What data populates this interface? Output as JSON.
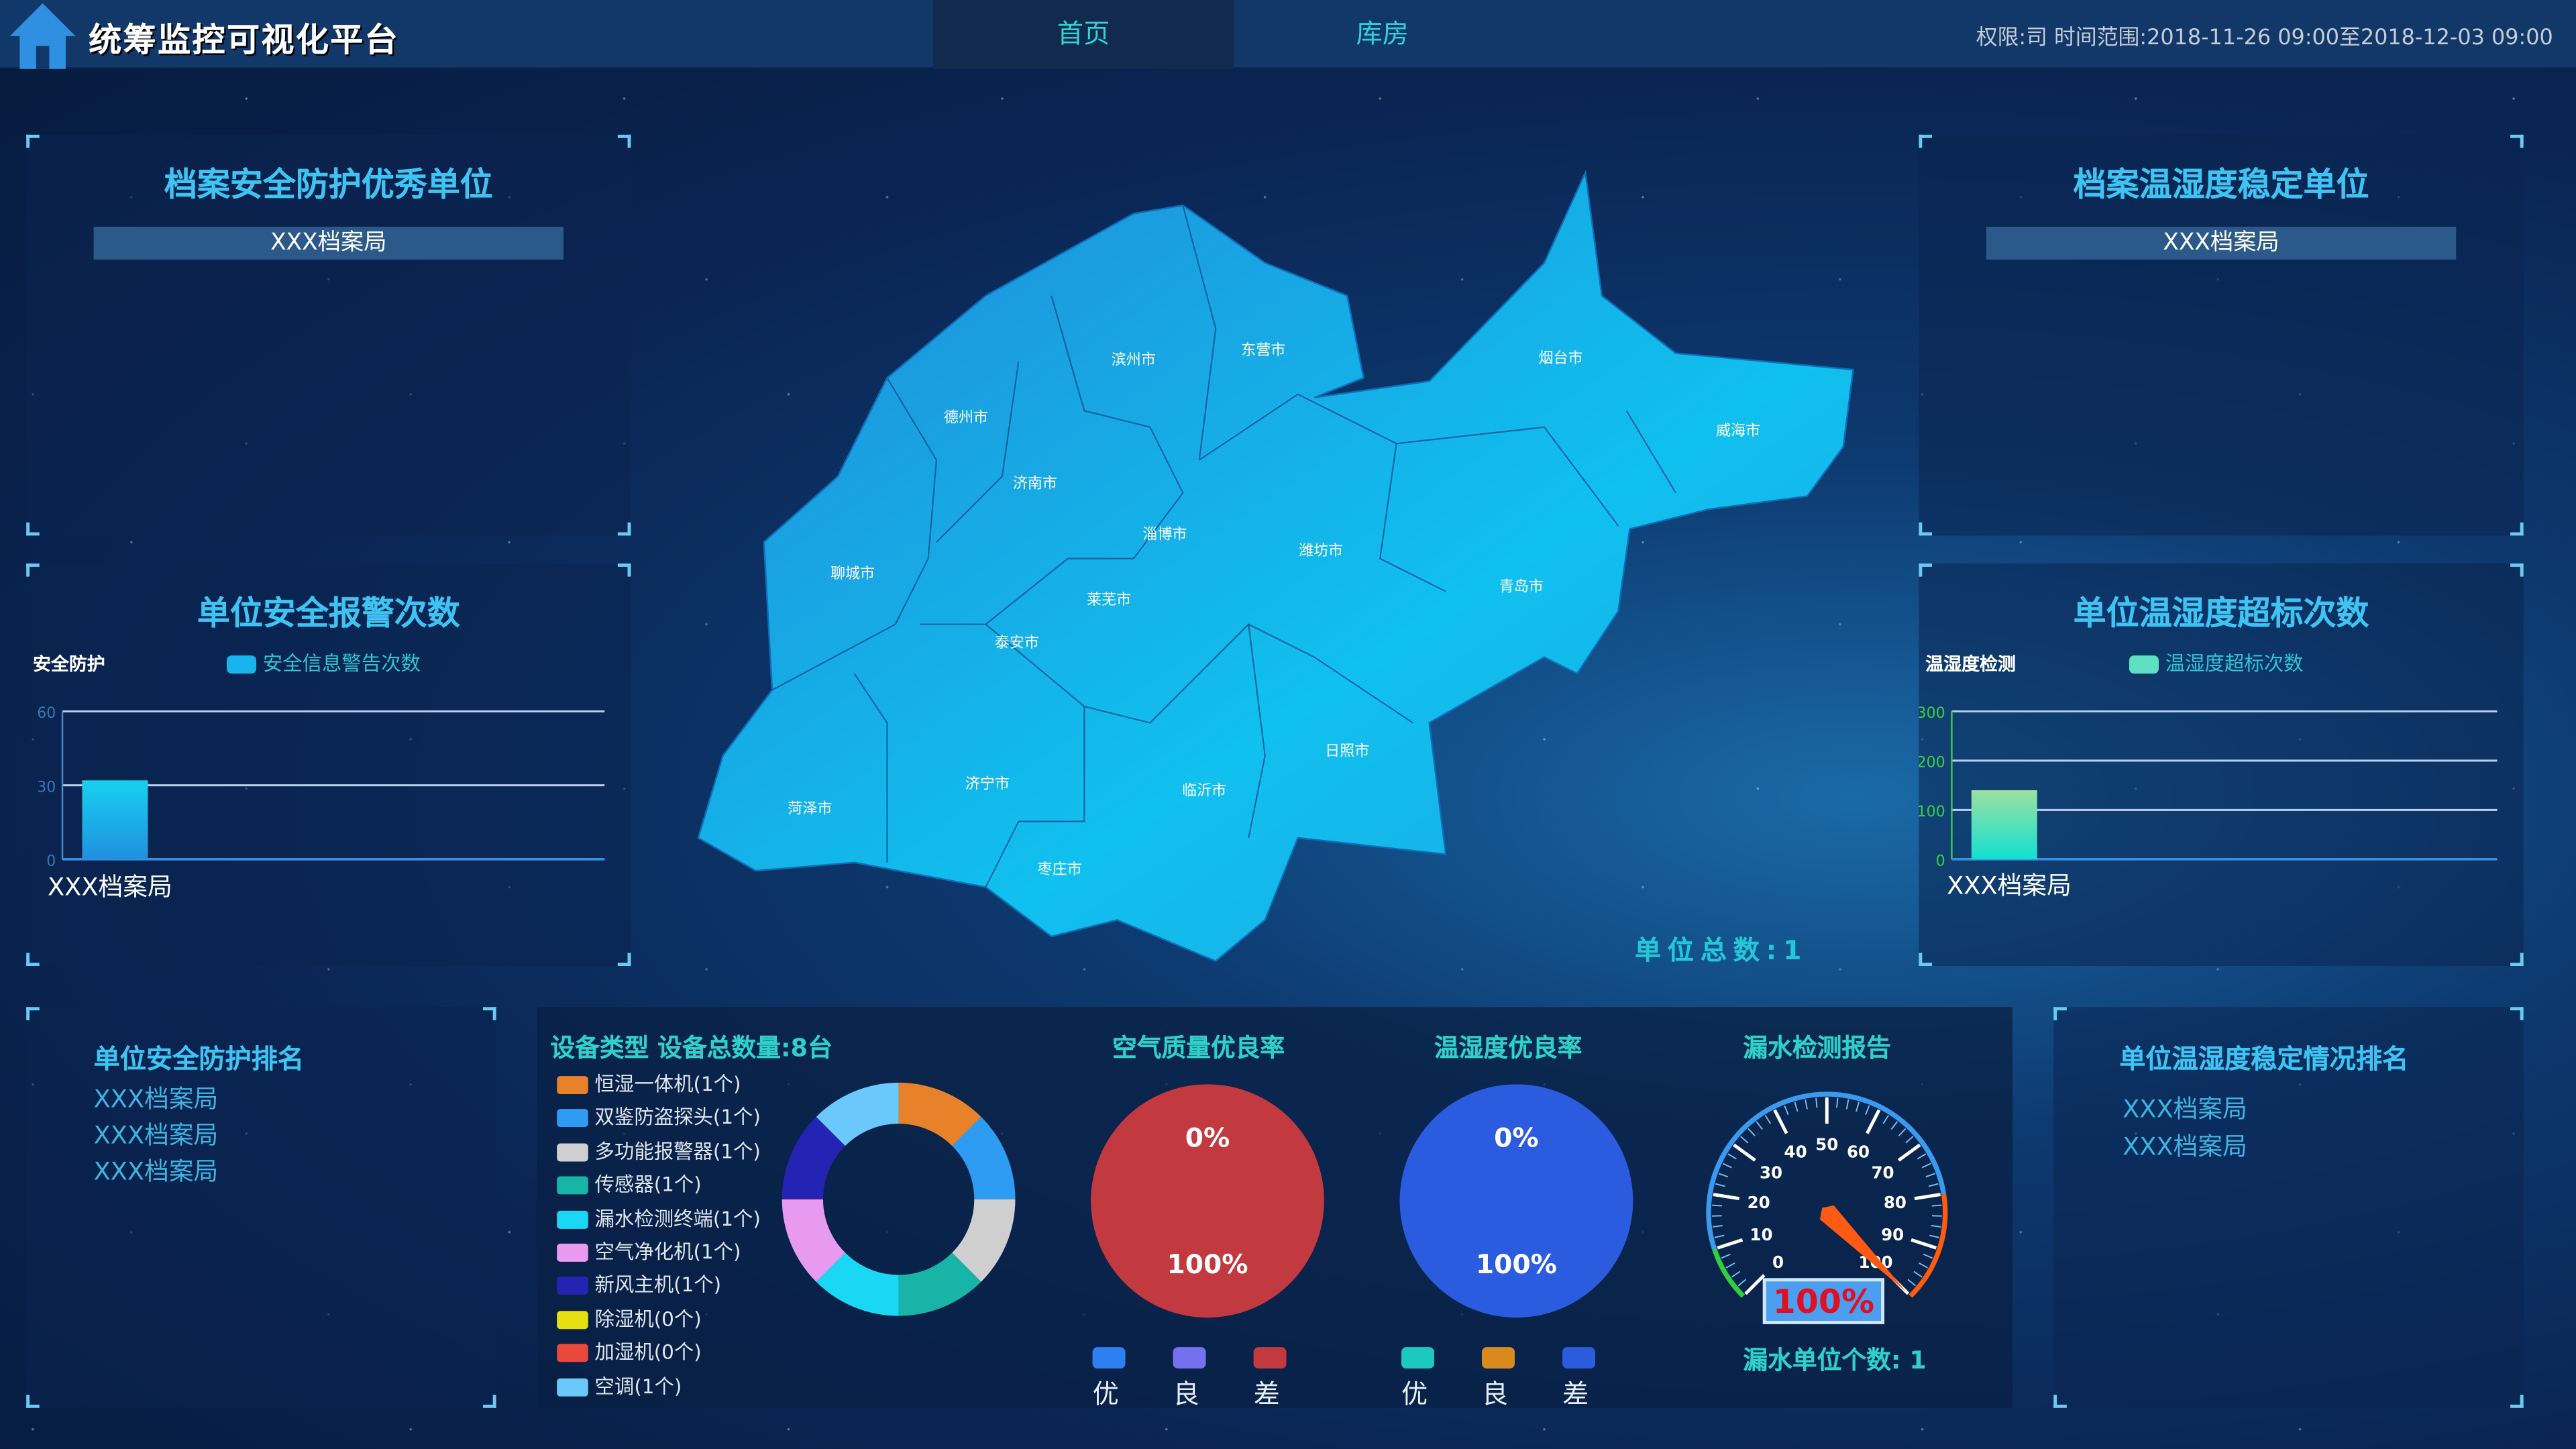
{
  "header": {
    "title": "统筹监控可视化平台",
    "tabs": [
      {
        "label": "首页",
        "active": true
      },
      {
        "label": "库房",
        "active": false
      }
    ],
    "info": "权限:司 时间范围:2018-11-26 09:00至2018-12-03 09:00",
    "logo_icon": "house-icon"
  },
  "top_left": {
    "title": "档案安全防护优秀单位",
    "unit": "XXX档案局"
  },
  "top_right": {
    "title": "档案温湿度稳定单位",
    "unit": "XXX档案局"
  },
  "map": {
    "cities": [
      "滨州市",
      "东营市",
      "烟台市",
      "威海市",
      "德州市",
      "济南市",
      "淄博市",
      "潍坊市",
      "青岛市",
      "聊城市",
      "莱芜市",
      "泰安市",
      "日照市",
      "济宁市",
      "临沂市",
      "菏泽市",
      "枣庄市"
    ],
    "total_label": "单位总数:1",
    "fill_color": "#1aa6e6"
  },
  "chart_data": [
    {
      "type": "bar",
      "title": "单位安全报警次数",
      "ylabel": "安全防护",
      "legend": "安全信息警告次数",
      "categories": [
        "XXX档案局"
      ],
      "values": [
        32
      ],
      "ylim": [
        0,
        60
      ],
      "yticks": [
        "0",
        "30",
        "60"
      ],
      "color": "#18c8ee",
      "grid": true,
      "legend_position": "top"
    },
    {
      "type": "bar",
      "title": "单位温湿度超标次数",
      "ylabel": "温湿度检测",
      "legend": "温湿度超标次数",
      "categories": [
        "XXX档案局"
      ],
      "values": [
        140
      ],
      "ylim": [
        0,
        300
      ],
      "yticks": [
        "0",
        "100",
        "200",
        "300"
      ],
      "color": "#3fe0c8",
      "grid": true,
      "legend_position": "top"
    },
    {
      "type": "pie",
      "title": "设备类型 设备总数量:8台",
      "donut": true,
      "items": [
        {
          "label": "恒湿一体机(1个)",
          "value": 1,
          "color": "#e8822a"
        },
        {
          "label": "双鉴防盗探头(1个)",
          "value": 1,
          "color": "#2e9cf2"
        },
        {
          "label": "多功能报警器(1个)",
          "value": 1,
          "color": "#cfcfcf"
        },
        {
          "label": "传感器(1个)",
          "value": 1,
          "color": "#18b4a8"
        },
        {
          "label": "漏水检测终端(1个)",
          "value": 1,
          "color": "#1ad8f4"
        },
        {
          "label": "空气净化机(1个)",
          "value": 1,
          "color": "#e89af0"
        },
        {
          "label": "新风主机(1个)",
          "value": 1,
          "color": "#2424b4"
        },
        {
          "label": "除湿机(0个)",
          "value": 0,
          "color": "#e6e012"
        },
        {
          "label": "加湿机(0个)",
          "value": 0,
          "color": "#e8493a"
        },
        {
          "label": "空调(1个)",
          "value": 1,
          "color": "#6ac8fa"
        }
      ]
    },
    {
      "type": "pie",
      "title": "空气质量优良率",
      "top_label": "0%",
      "bottom_label": "100%",
      "items": [
        {
          "label": "优",
          "value": 0,
          "color": "#2e7ff0"
        },
        {
          "label": "良",
          "value": 0,
          "color": "#7571ee"
        },
        {
          "label": "差",
          "value": 100,
          "color": "#c2393f"
        }
      ]
    },
    {
      "type": "pie",
      "title": "温湿度优良率",
      "top_label": "0%",
      "bottom_label": "100%",
      "items": [
        {
          "label": "优",
          "value": 0,
          "color": "#1cc9c0"
        },
        {
          "label": "良",
          "value": 0,
          "color": "#d98a1e"
        },
        {
          "label": "差",
          "value": 100,
          "color": "#2b5ce0"
        }
      ]
    },
    {
      "type": "gauge",
      "title": "漏水检测报告",
      "value": 100,
      "range": [
        0,
        100
      ],
      "ticks": [
        "0",
        "10",
        "20",
        "30",
        "40",
        "50",
        "60",
        "70",
        "80",
        "90",
        "100"
      ],
      "value_label": "100%",
      "footer": "漏水单位个数: 1"
    }
  ],
  "bottom_left": {
    "title": "单位安全防护排名",
    "items": [
      "XXX档案局",
      "XXX档案局",
      "XXX档案局"
    ]
  },
  "bottom_right": {
    "title": "单位温湿度稳定情况排名",
    "items": [
      "XXX档案局",
      "XXX档案局"
    ]
  }
}
